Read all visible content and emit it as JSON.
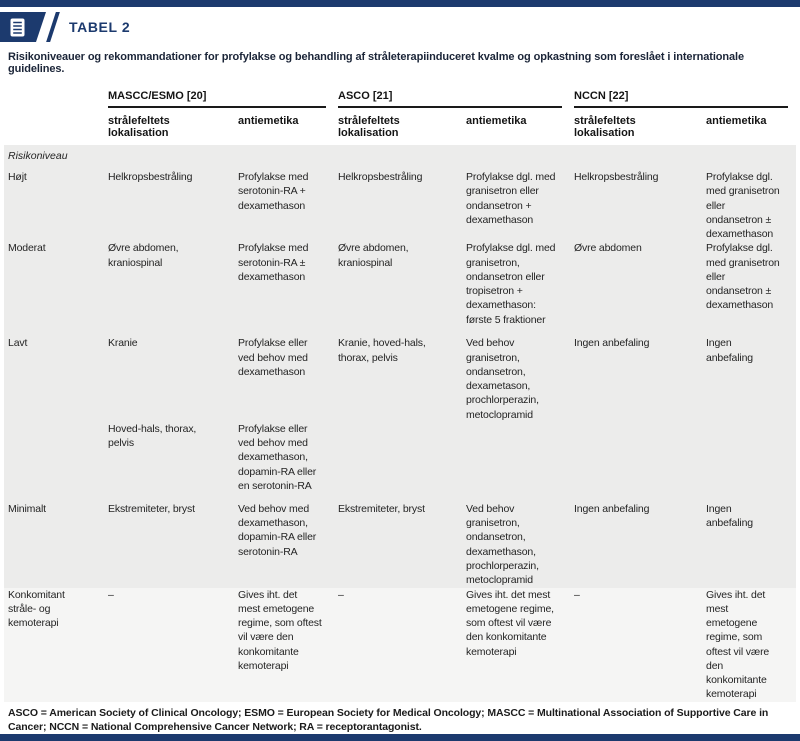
{
  "accent_color": "#1c3a6e",
  "header": {
    "badge_label": "TABEL 2",
    "icon": "document-icon"
  },
  "subtitle": "Risikoniveauer og rekommandationer for profylakse og behandling af stråleterapiinduceret kvalme og opkastning som foreslået i internationale guidelines.",
  "table": {
    "groups": [
      {
        "label": "MASCC/ESMO [20]"
      },
      {
        "label": "ASCO [21]"
      },
      {
        "label": "NCCN [22]"
      }
    ],
    "col_location_label": "strålefeltets lokalisation",
    "col_antiemetic_label": "antiemetika",
    "section_label": "Risikoniveau",
    "rows": [
      {
        "type": "section",
        "label": "Risikoniveau",
        "h": 20
      },
      {
        "h": 65,
        "cells": [
          "Højt",
          "Helkropsbestråling",
          "Profylakse med serotonin-RA + dexamethason",
          "Helkropsbestråling",
          "Profylakse dgl. med granisetron eller ondansetron + dexamethason",
          "Helkropsbestråling",
          "Profylakse dgl. med granisetron eller ondansetron ± dexamethason"
        ]
      },
      {
        "h": 95,
        "cells": [
          "Moderat",
          "Øvre abdomen, kraniospinal",
          "Profylakse med serotonin-RA ± dexamethason",
          "Øvre abdomen, kraniospinal",
          "Profylakse dgl. med granisetron, ondansetron eller tropisetron + dexamethason: første 5 fraktioner",
          "Øvre abdomen",
          "Profylakse dgl. med granisetron eller ondansetron ± dexamethason"
        ]
      },
      {
        "h": 80,
        "cells": [
          "Lavt",
          "Kranie",
          "Profylakse eller ved behov med dexamethason",
          "Kranie, hoved-hals, thorax, pelvis",
          "Ved behov granisetron, ondansetron, dexametason, prochlorperazin, metoclopramid",
          "Ingen anbefaling",
          "Ingen anbefaling"
        ]
      },
      {
        "h": 80,
        "cells": [
          "",
          "Hoved-hals, thorax, pelvis",
          "Profylakse eller ved behov med dexamethason, dopamin-RA eller en serotonin-RA",
          "",
          "",
          "",
          ""
        ]
      },
      {
        "h": 72,
        "cells": [
          "Minimalt",
          "Ekstremiteter, bryst",
          "Ved behov med dexamethason, dopamin-RA eller serotonin-RA",
          "Ekstremiteter, bryst",
          "Ved behov granisetron, ondansetron, dexamethason, prochlorperazin, metoclopramid",
          "Ingen anbefaling",
          "Ingen anbefaling"
        ]
      },
      {
        "h": 76,
        "shade": "light",
        "cells": [
          "Konkomitant stråle- og kemoterapi",
          "–",
          "Gives iht. det mest emetogene regime, som oftest vil være den konkomitante kemoterapi",
          "–",
          "Gives iht. det mest emetogene regime, som oftest vil være den konkomitante kemoterapi",
          "–",
          "Gives iht. det mest emetogene regime, som oftest vil være den konkomitante kemoterapi"
        ]
      }
    ]
  },
  "footnote": "ASCO = American Society of Clinical Oncology; ESMO = European Society for Medical Oncology; MASCC = Multinational Association of Supportive Care in Cancer; NCCN = National Comprehensive Cancer Network; RA = receptorantagonist."
}
